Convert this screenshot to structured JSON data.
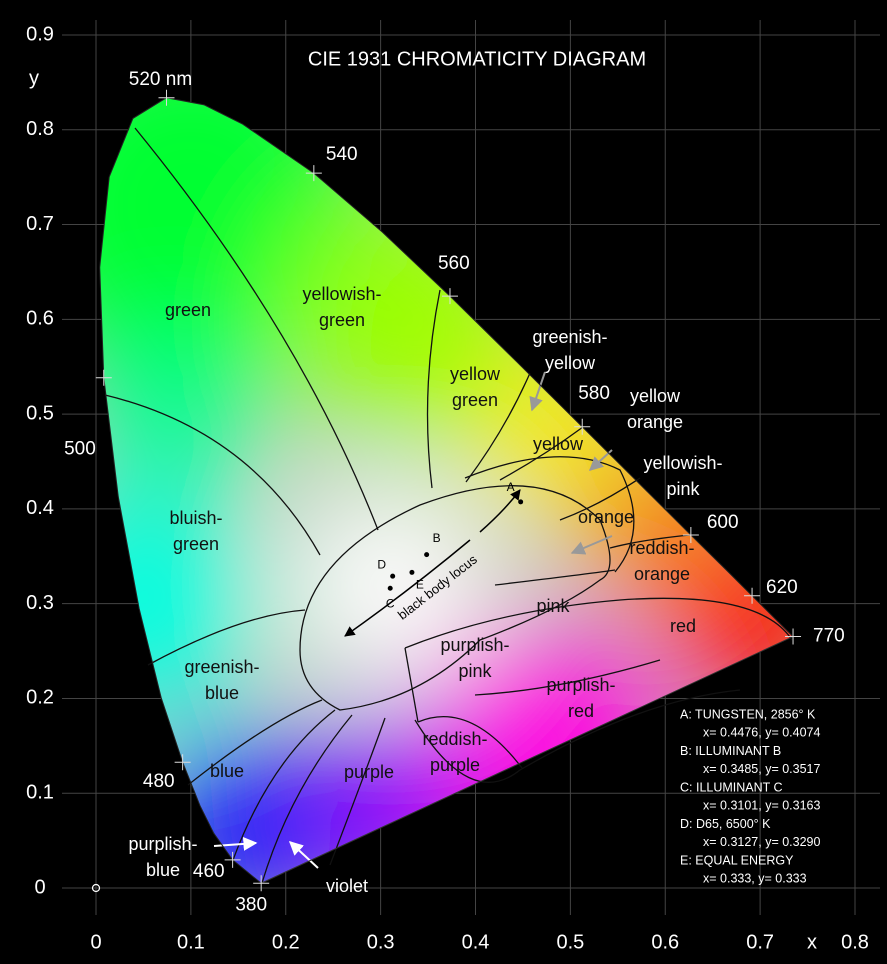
{
  "chart_data": {
    "type": "chromaticity",
    "title": "CIE 1931 CHROMATICITY DIAGRAM",
    "x_label": "x",
    "y_label": "y",
    "xlim": [
      0,
      0.8
    ],
    "ylim": [
      0,
      0.9
    ],
    "xticks": [
      0,
      0.1,
      0.2,
      0.3,
      0.4,
      0.5,
      0.6,
      0.7,
      0.8
    ],
    "yticks": [
      0,
      0.1,
      0.2,
      0.3,
      0.4,
      0.5,
      0.6,
      0.7,
      0.8,
      0.9
    ],
    "grid": true,
    "locus": {
      "x": [
        0.1741,
        0.144,
        0.1241,
        0.1096,
        0.0913,
        0.0687,
        0.0454,
        0.0235,
        0.0082,
        0.0039,
        0.0139,
        0.0389,
        0.0743,
        0.1142,
        0.1547,
        0.2296,
        0.3016,
        0.3731,
        0.4441,
        0.5125,
        0.5752,
        0.627,
        0.6658,
        0.6915,
        0.719,
        0.7347
      ],
      "y": [
        0.005,
        0.0297,
        0.0578,
        0.0868,
        0.1327,
        0.2007,
        0.295,
        0.4127,
        0.5384,
        0.6548,
        0.7502,
        0.812,
        0.8338,
        0.8262,
        0.8059,
        0.7543,
        0.6923,
        0.6245,
        0.5547,
        0.4866,
        0.4242,
        0.3725,
        0.334,
        0.3083,
        0.2809,
        0.2653
      ],
      "labels": [
        "380",
        "460",
        null,
        null,
        "480",
        null,
        null,
        null,
        "500",
        null,
        null,
        null,
        "520 nm",
        null,
        null,
        "540",
        null,
        "560",
        null,
        "580",
        null,
        "600",
        null,
        "620",
        null,
        "770"
      ]
    },
    "regions": [
      [
        "green"
      ],
      [
        "yellowish-",
        "green"
      ],
      [
        "yellow",
        "green"
      ],
      [
        "greenish-",
        "yellow"
      ],
      [
        "yellow"
      ],
      [
        "yellow",
        "orange"
      ],
      [
        "yellowish-",
        "pink"
      ],
      [
        "orange"
      ],
      [
        "reddish-",
        "orange"
      ],
      [
        "red"
      ],
      [
        "pink"
      ],
      [
        "purplish-",
        "pink"
      ],
      [
        "purplish-",
        "red"
      ],
      [
        "reddish-",
        "purple"
      ],
      [
        "purple"
      ],
      [
        "blue"
      ],
      [
        "bluish-",
        "green"
      ],
      [
        "greenish-",
        "blue"
      ],
      [
        "violet"
      ],
      [
        "purplish-",
        "blue"
      ]
    ],
    "blackbody_label": "black body locus",
    "illuminants": [
      {
        "letter": "A",
        "legend_title": "A:  TUNGSTEN, 2856° K",
        "x": 0.4476,
        "y": 0.4074,
        "value_label": "x= 0.4476, y= 0.4074"
      },
      {
        "letter": "B",
        "legend_title": "B:  ILLUMINANT B",
        "x": 0.3485,
        "y": 0.3517,
        "value_label": "x= 0.3485, y= 0.3517"
      },
      {
        "letter": "C",
        "legend_title": "C:  ILLUMINANT C",
        "x": 0.3101,
        "y": 0.3163,
        "value_label": "x= 0.3101, y= 0.3163"
      },
      {
        "letter": "D",
        "legend_title": "D:  D65, 6500° K",
        "x": 0.3127,
        "y": 0.329,
        "value_label": "x= 0.3127, y= 0.3290"
      },
      {
        "letter": "E",
        "legend_title": "E:  EQUAL ENERGY",
        "x": 0.333,
        "y": 0.333,
        "value_label": "x= 0.333, y= 0.333"
      }
    ]
  }
}
